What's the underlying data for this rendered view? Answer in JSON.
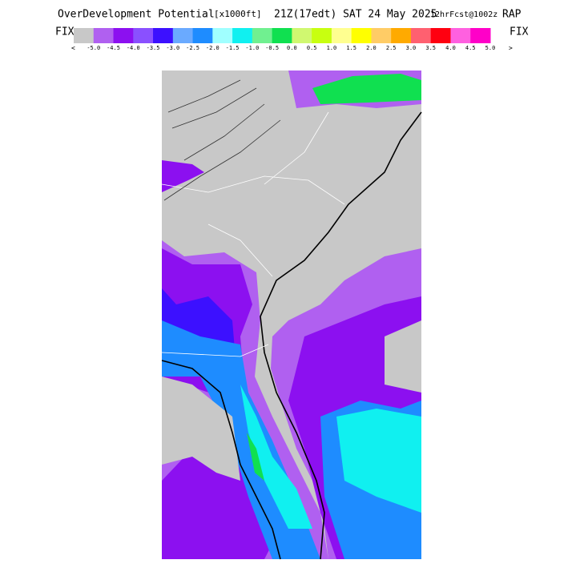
{
  "header": {
    "title": "OverDevelopment Potential",
    "units": "[x1000ft]",
    "time": "21Z(17edt) SAT 24 May 2025",
    "forecast": "12hrFcst@1002z",
    "model": "RAP"
  },
  "colorbar": {
    "left_label": "FIX",
    "right_label": "FIX",
    "below_marker": "<",
    "above_marker": ">",
    "colors": [
      "#c8c8c8",
      "#b060f0",
      "#8c10f0",
      "#8a50ff",
      "#3c10ff",
      "#6aaaff",
      "#1e8cff",
      "#a0ffff",
      "#10f0f0",
      "#70f090",
      "#10e050",
      "#d0f870",
      "#c8ff10",
      "#ffff90",
      "#ffff00",
      "#ffcc66",
      "#ffaa00",
      "#ff6070",
      "#ff0010",
      "#ff60e0",
      "#ff00c8"
    ],
    "labels": [
      "-5.0",
      "-4.5",
      "-4.0",
      "-3.5",
      "-3.0",
      "-2.5",
      "-2.0",
      "-1.5",
      "-1.0",
      "-0.5",
      "0.0",
      "0.5",
      "1.0",
      "1.5",
      "2.0",
      "2.5",
      "3.0",
      "3.5",
      "4.0",
      "4.5",
      "5.0"
    ]
  }
}
